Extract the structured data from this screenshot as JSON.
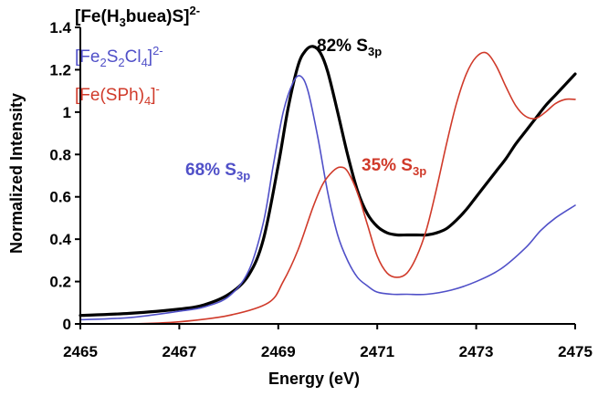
{
  "chart_data": {
    "type": "line",
    "xlabel": "Energy (eV)",
    "ylabel": "Normalized Intensity",
    "xlim": [
      2465,
      2475
    ],
    "ylim": [
      0,
      1.4
    ],
    "x_ticks": [
      "2465",
      "2467",
      "2469",
      "2471",
      "2473",
      "2475"
    ],
    "y_ticks": [
      "0",
      "0.2",
      "0.4",
      "0.6",
      "0.8",
      "1",
      "1.2",
      "1.4"
    ],
    "grid": false,
    "legend_position": "top-left",
    "colors": {
      "black": "#000000",
      "blue": "#5050c8",
      "red": "#d03a2a"
    },
    "legend": {
      "black": {
        "a": "[Fe(H",
        "sub1": "3",
        "b": "buea)S]",
        "sup": "2-"
      },
      "blue": {
        "a": "[Fe",
        "sub1": "2",
        "b": "S",
        "sub2": "2",
        "c": "Cl",
        "sub3": "4",
        "d": "]",
        "sup": "2-"
      },
      "red": {
        "a": "[Fe(SPh)",
        "sub1": "4",
        "b": "]",
        "sup": "-"
      }
    },
    "annotations": {
      "black": {
        "main": "82% S",
        "sub": "3p"
      },
      "blue": {
        "main": "68% S",
        "sub": "3p"
      },
      "red": {
        "main": "35% S",
        "sub": "3p"
      }
    },
    "series": [
      {
        "key": "black",
        "x": [
          2465.0,
          2466.0,
          2467.0,
          2467.5,
          2468.0,
          2468.4,
          2468.7,
          2469.0,
          2469.2,
          2469.4,
          2469.55,
          2469.7,
          2469.85,
          2470.0,
          2470.2,
          2470.4,
          2470.6,
          2470.8,
          2471.0,
          2471.2,
          2471.4,
          2471.6,
          2471.8,
          2472.0,
          2472.2,
          2472.4,
          2472.6,
          2472.8,
          2473.0,
          2473.2,
          2473.4,
          2473.6,
          2473.8,
          2474.0,
          2474.2,
          2474.4,
          2474.6,
          2474.8,
          2475.0
        ],
        "y": [
          0.04,
          0.05,
          0.07,
          0.09,
          0.14,
          0.23,
          0.4,
          0.75,
          1.02,
          1.22,
          1.29,
          1.31,
          1.28,
          1.19,
          1.0,
          0.8,
          0.63,
          0.52,
          0.46,
          0.43,
          0.42,
          0.42,
          0.42,
          0.42,
          0.43,
          0.45,
          0.49,
          0.54,
          0.6,
          0.66,
          0.72,
          0.78,
          0.85,
          0.91,
          0.97,
          1.03,
          1.08,
          1.13,
          1.18
        ]
      },
      {
        "key": "blue",
        "x": [
          2465.0,
          2466.0,
          2467.0,
          2467.5,
          2468.0,
          2468.4,
          2468.7,
          2468.9,
          2469.1,
          2469.3,
          2469.45,
          2469.6,
          2469.8,
          2470.0,
          2470.2,
          2470.4,
          2470.6,
          2470.8,
          2471.0,
          2471.3,
          2471.6,
          2472.0,
          2472.5,
          2473.0,
          2473.5,
          2474.0,
          2474.3,
          2474.6,
          2475.0
        ],
        "y": [
          0.02,
          0.03,
          0.06,
          0.08,
          0.13,
          0.25,
          0.48,
          0.75,
          1.0,
          1.14,
          1.17,
          1.1,
          0.88,
          0.62,
          0.42,
          0.3,
          0.22,
          0.18,
          0.15,
          0.14,
          0.14,
          0.14,
          0.16,
          0.2,
          0.26,
          0.36,
          0.44,
          0.5,
          0.56
        ]
      },
      {
        "key": "red",
        "x": [
          2465.0,
          2466.0,
          2467.0,
          2468.0,
          2468.8,
          2469.1,
          2469.4,
          2469.7,
          2469.9,
          2470.1,
          2470.25,
          2470.4,
          2470.6,
          2470.8,
          2471.0,
          2471.2,
          2471.4,
          2471.6,
          2471.8,
          2472.0,
          2472.2,
          2472.4,
          2472.6,
          2472.8,
          2473.0,
          2473.2,
          2473.4,
          2473.6,
          2473.8,
          2474.0,
          2474.2,
          2474.4,
          2474.6,
          2474.8,
          2475.0
        ],
        "y": [
          0.0,
          0.0,
          0.01,
          0.04,
          0.1,
          0.2,
          0.35,
          0.55,
          0.66,
          0.72,
          0.74,
          0.72,
          0.62,
          0.47,
          0.32,
          0.24,
          0.22,
          0.24,
          0.32,
          0.45,
          0.64,
          0.85,
          1.04,
          1.18,
          1.26,
          1.28,
          1.22,
          1.12,
          1.03,
          0.98,
          0.97,
          1.0,
          1.04,
          1.06,
          1.06
        ]
      }
    ]
  }
}
